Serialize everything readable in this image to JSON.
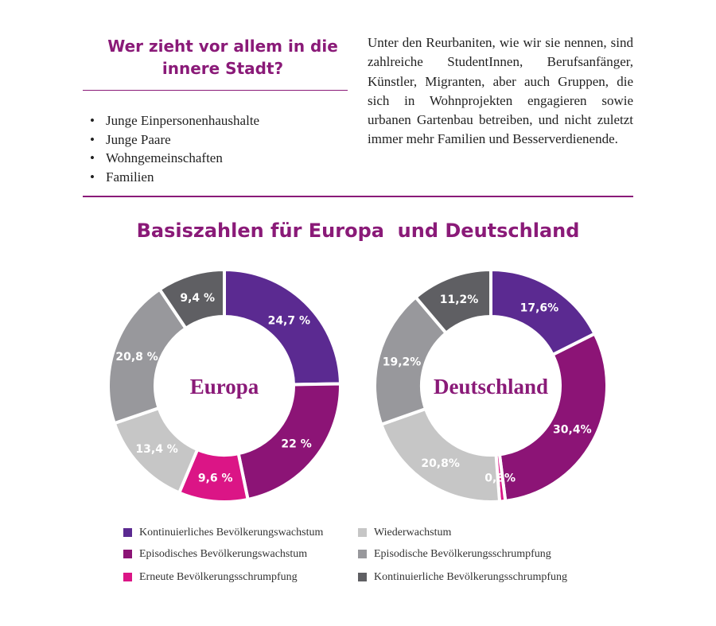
{
  "intro": {
    "title_lines": [
      "Wer zieht vor allem in die",
      "innere Stadt?"
    ],
    "bullets": [
      "Junge Einpersonenhaushalte",
      "Junge Paare",
      "Wohngemeinschaften",
      "Familien"
    ],
    "paragraph": "Unter den Reurbaniten, wie wir sie nennen, sind zahlreiche StudentInnen, Berufsanfän­ger, Künstler, Migranten, aber auch Grup­pen, die sich in Wohnprojekten engagieren sowie urbanen Gartenbau betreiben, und nicht zuletzt immer mehr Familien und Besserverdienende."
  },
  "section_title": "Basiszahlen für Europa  und Deutschland",
  "colors": {
    "accent": "#8a1a78",
    "categories": [
      "#5b2a91",
      "#8c1476",
      "#db1586",
      "#c6c6c6",
      "#98989c",
      "#5f5f63"
    ]
  },
  "chart_data": [
    {
      "type": "pie",
      "donut": true,
      "title": "Europa",
      "categories": [
        "Kontinuierliches Bevölkerungswachstum",
        "Episodisches Bevölkerungswachstum",
        "Erneute Bevölkerungsschrumpfung",
        "Wiederwachstum",
        "Episodische Bevölkerungsschrumpfung",
        "Kontinuierliche Bevölkerungsschrumpfung"
      ],
      "values": [
        24.7,
        22,
        9.6,
        13.4,
        20.8,
        9.4
      ],
      "labels": [
        "24,7 %",
        "22 %",
        "9,6 %",
        "13,4 %",
        "20,8 %",
        "9,4 %"
      ]
    },
    {
      "type": "pie",
      "donut": true,
      "title": "Deutschland",
      "categories": [
        "Kontinuierliches Bevölkerungswachstum",
        "Episodisches Bevölkerungswachstum",
        "Erneute Bevölkerungsschrumpfung",
        "Wiederwachstum",
        "Episodische Bevölkerungsschrumpfung",
        "Kontinuierliche Bevölkerungsschrumpfung"
      ],
      "values": [
        17.6,
        30.4,
        0.8,
        20.8,
        19.2,
        11.2
      ],
      "labels": [
        "17,6%",
        "30,4%",
        "0,8%",
        "20,8%",
        "19,2%",
        "11,2%"
      ]
    }
  ],
  "legend": {
    "placement": "bottom",
    "items": [
      {
        "label": "Kontinuierliches Bevölkerungswachstum",
        "color": "#5b2a91"
      },
      {
        "label": "Episodisches Bevölkerungswachstum",
        "color": "#8c1476"
      },
      {
        "label": "Erneute Bevölkerungsschrumpfung",
        "color": "#db1586"
      },
      {
        "label": "Wiederwachstum",
        "color": "#c6c6c6"
      },
      {
        "label": "Episodische Bevölkerungsschrumpfung",
        "color": "#98989c"
      },
      {
        "label": "Kontinuierliche Bevölkerungsschrumpfung",
        "color": "#5f5f63"
      }
    ]
  }
}
